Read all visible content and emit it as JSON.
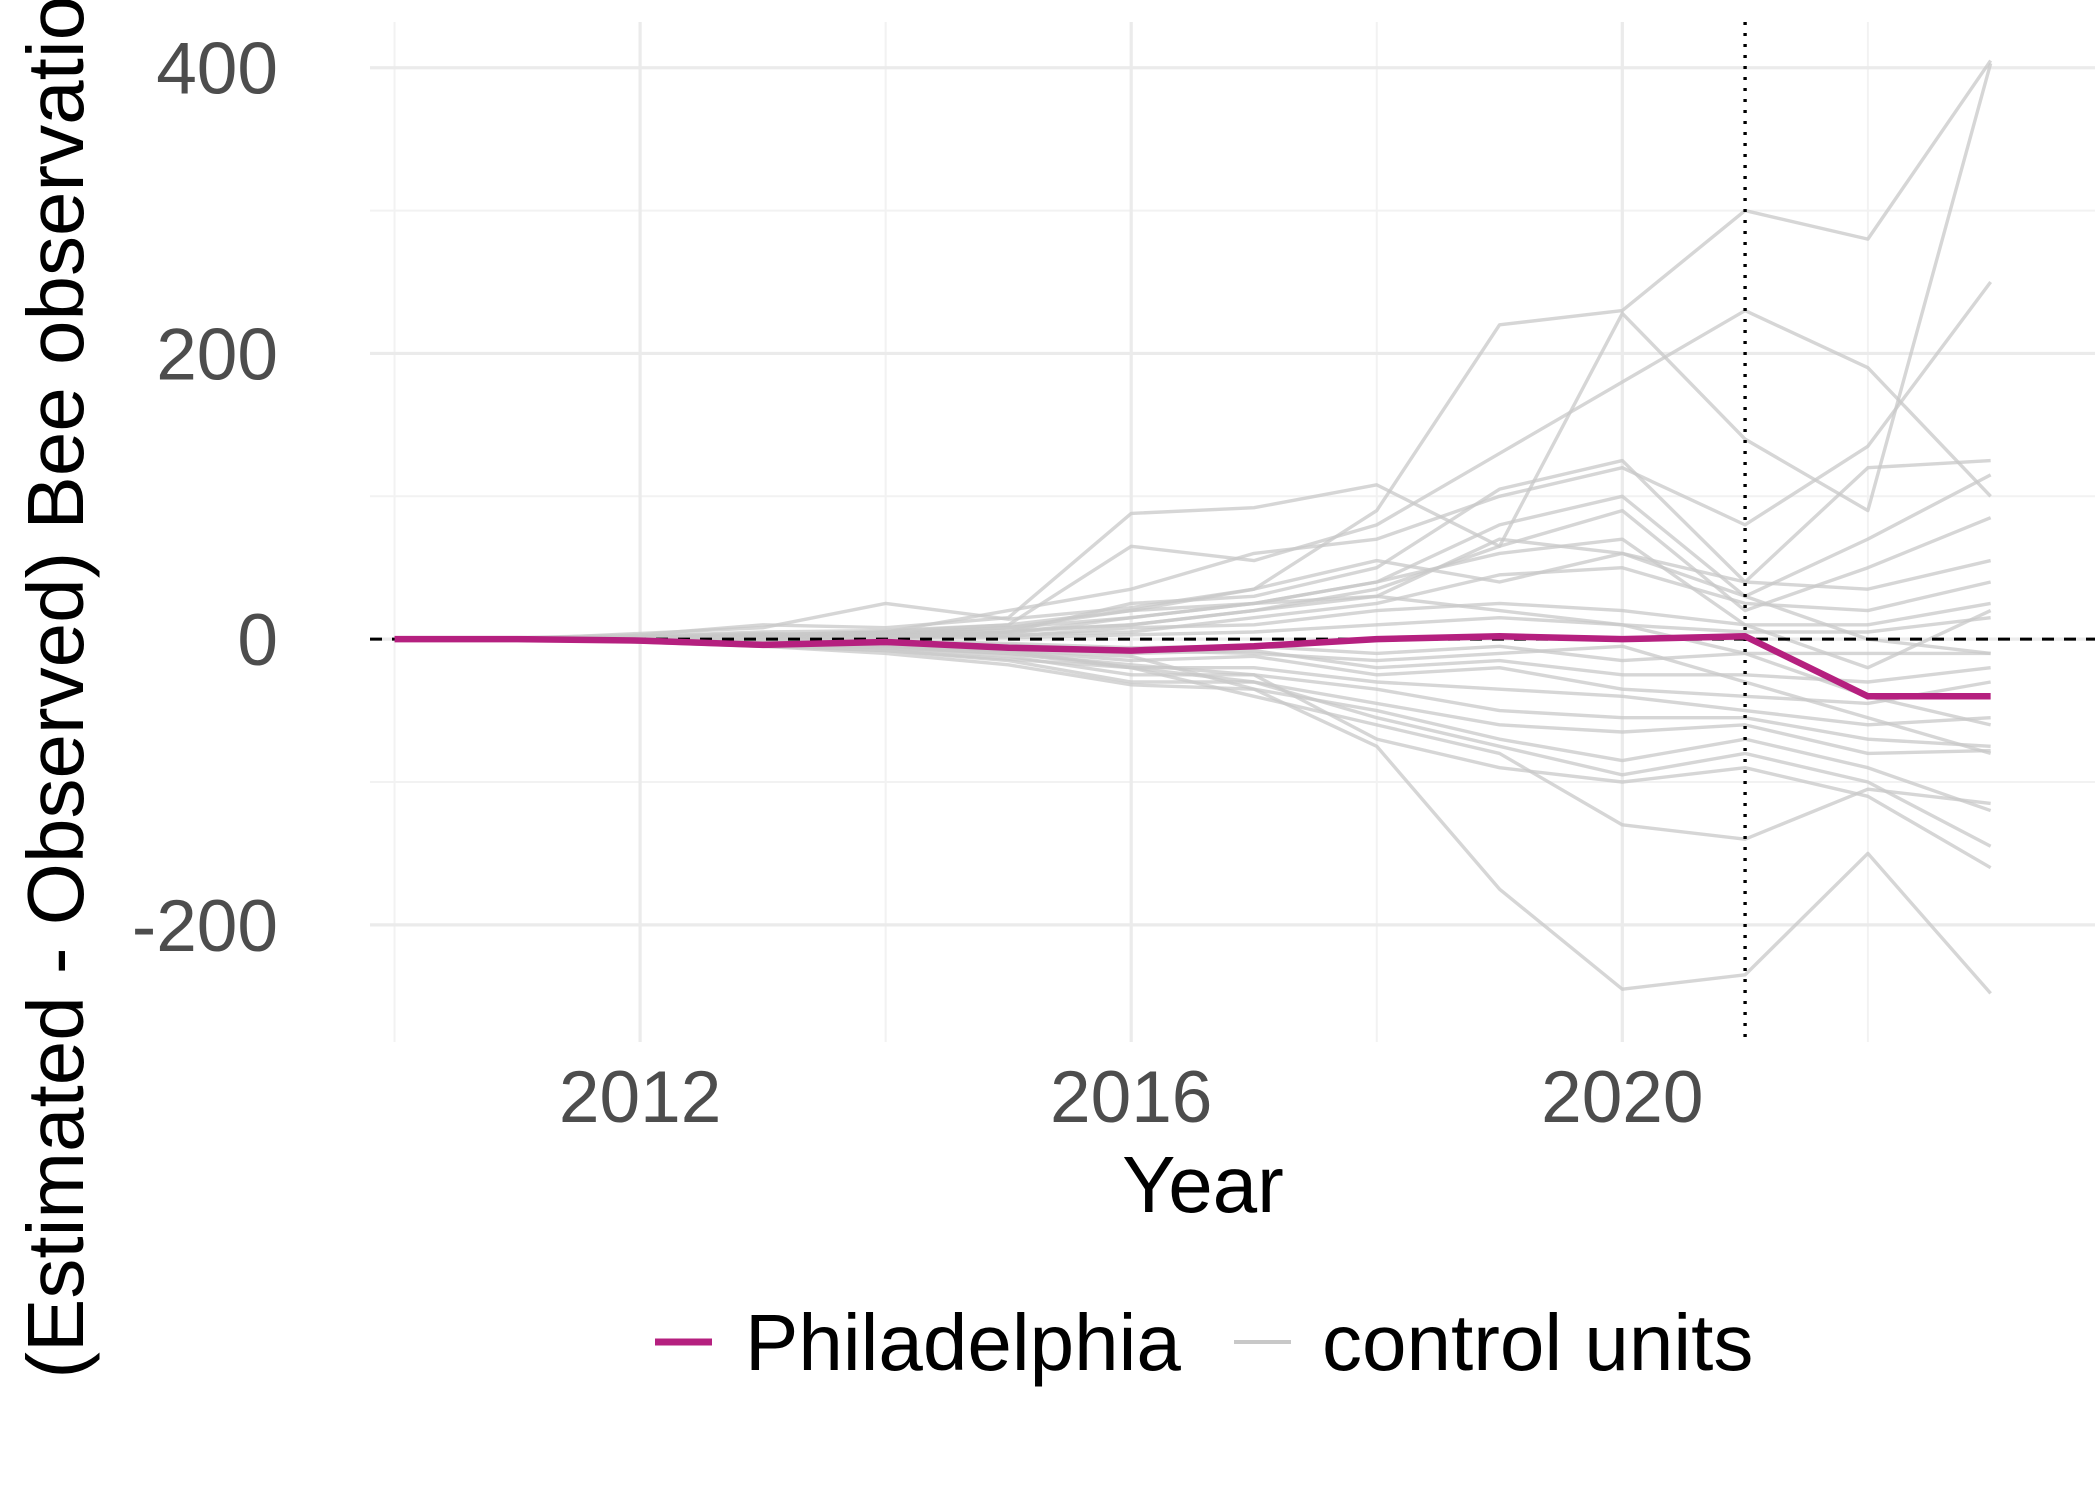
{
  "chart_data": {
    "type": "line",
    "xlabel": "Year",
    "ylabel": "(Estimated - Observed) Bee observations",
    "x": [
      2010,
      2011,
      2012,
      2013,
      2014,
      2015,
      2016,
      2017,
      2018,
      2019,
      2020,
      2021,
      2022,
      2023
    ],
    "xlim": [
      2009.8,
      2023.85
    ],
    "ylim": [
      -282,
      432
    ],
    "x_ticks": [
      "2012",
      "2016",
      "2020"
    ],
    "y_ticks": [
      "400",
      "200",
      "0",
      "-200"
    ],
    "grid": true,
    "reference_lines": {
      "horizontal_dashed_y": 0,
      "vertical_dotted_x": 2021
    },
    "legend": {
      "position": "bottom"
    },
    "colors": {
      "treated": "#b5207f",
      "control": "#c8c8c8",
      "reference": "#000000"
    },
    "series": [
      {
        "name": "Philadelphia",
        "role": "treated",
        "values": [
          0,
          0,
          -1,
          -4,
          -2,
          -6,
          -8,
          -5,
          0,
          2,
          0,
          2,
          -40,
          -40
        ]
      },
      {
        "name": "control units",
        "role": "control",
        "values": [
          0,
          1,
          3,
          10,
          8,
          15,
          88,
          92,
          108,
          65,
          228,
          140,
          90,
          403
        ]
      },
      {
        "role": "control",
        "values": [
          0,
          0,
          4,
          8,
          25,
          14,
          22,
          35,
          90,
          220,
          230,
          300,
          280,
          405
        ]
      },
      {
        "role": "control",
        "values": [
          0,
          1,
          2,
          5,
          6,
          10,
          65,
          55,
          80,
          130,
          180,
          230,
          190,
          100
        ]
      },
      {
        "role": "control",
        "values": [
          0,
          0,
          1,
          3,
          5,
          20,
          35,
          60,
          70,
          100,
          120,
          80,
          135,
          250
        ]
      },
      {
        "role": "control",
        "values": [
          0,
          0,
          2,
          4,
          2,
          5,
          25,
          30,
          50,
          105,
          125,
          40,
          120,
          125
        ]
      },
      {
        "role": "control",
        "values": [
          0,
          0,
          1,
          2,
          3,
          8,
          20,
          25,
          40,
          80,
          100,
          30,
          70,
          115
        ]
      },
      {
        "role": "control",
        "values": [
          0,
          0,
          1,
          1,
          4,
          6,
          10,
          20,
          35,
          65,
          90,
          20,
          50,
          85
        ]
      },
      {
        "role": "control",
        "values": [
          0,
          0,
          0,
          2,
          1,
          4,
          15,
          25,
          30,
          70,
          60,
          40,
          35,
          55
        ]
      },
      {
        "role": "control",
        "values": [
          0,
          0,
          1,
          1,
          3,
          3,
          5,
          15,
          25,
          45,
          50,
          25,
          20,
          40
        ]
      },
      {
        "role": "control",
        "values": [
          0,
          0,
          2,
          1,
          2,
          2,
          8,
          10,
          20,
          25,
          20,
          10,
          10,
          25
        ]
      },
      {
        "role": "control",
        "values": [
          0,
          0,
          0,
          1,
          1,
          1,
          3,
          5,
          10,
          15,
          10,
          5,
          5,
          15
        ]
      },
      {
        "role": "control",
        "values": [
          0,
          0,
          0,
          0,
          -1,
          -3,
          -6,
          -5,
          -10,
          -5,
          -15,
          -10,
          -10,
          -10
        ]
      },
      {
        "role": "control",
        "values": [
          0,
          0,
          -1,
          -2,
          -3,
          -5,
          -10,
          -8,
          -20,
          -15,
          -25,
          -25,
          -30,
          -20
        ]
      },
      {
        "role": "control",
        "values": [
          0,
          0,
          -1,
          -2,
          -4,
          -8,
          -15,
          -12,
          -25,
          -20,
          -35,
          -40,
          -45,
          -30
        ]
      },
      {
        "role": "control",
        "values": [
          0,
          0,
          -1,
          -3,
          -5,
          -10,
          -20,
          -20,
          -30,
          -35,
          -40,
          -50,
          -60,
          -55
        ]
      },
      {
        "role": "control",
        "values": [
          0,
          0,
          -2,
          -4,
          -6,
          -12,
          -25,
          -25,
          -35,
          -50,
          -55,
          -55,
          -70,
          -75
        ]
      },
      {
        "role": "control",
        "values": [
          0,
          0,
          -2,
          -5,
          -8,
          -15,
          -30,
          -30,
          -45,
          -60,
          -65,
          -60,
          -80,
          -78
        ]
      },
      {
        "role": "control",
        "values": [
          0,
          0,
          -2,
          -5,
          -10,
          -18,
          -32,
          -35,
          -50,
          -70,
          -85,
          -70,
          -90,
          -120
        ]
      },
      {
        "role": "control",
        "values": [
          0,
          0,
          -1,
          -4,
          -8,
          -14,
          -20,
          -30,
          -55,
          -75,
          -95,
          -80,
          -100,
          -145
        ]
      },
      {
        "role": "control",
        "values": [
          0,
          0,
          -1,
          -3,
          -6,
          -10,
          -18,
          -25,
          -70,
          -90,
          -100,
          -90,
          -110,
          -160
        ]
      },
      {
        "role": "control",
        "values": [
          0,
          0,
          -1,
          -2,
          -4,
          -8,
          -12,
          -35,
          -75,
          -175,
          -245,
          -235,
          -150,
          -248
        ]
      },
      {
        "role": "control",
        "values": [
          0,
          0,
          -1,
          -3,
          -5,
          -8,
          -20,
          -40,
          -60,
          -80,
          -130,
          -140,
          -105,
          -115
        ]
      },
      {
        "role": "control",
        "values": [
          0,
          0,
          1,
          2,
          4,
          8,
          15,
          25,
          40,
          60,
          70,
          10,
          -20,
          20
        ]
      },
      {
        "role": "control",
        "values": [
          0,
          0,
          1,
          3,
          5,
          10,
          20,
          35,
          55,
          40,
          60,
          30,
          0,
          -10
        ]
      },
      {
        "role": "control",
        "values": [
          0,
          0,
          0,
          1,
          2,
          5,
          10,
          20,
          30,
          20,
          10,
          -10,
          -40,
          -60
        ]
      },
      {
        "role": "control",
        "values": [
          0,
          0,
          0,
          -1,
          -2,
          -4,
          -8,
          -10,
          -15,
          -10,
          -5,
          -30,
          -55,
          -80
        ]
      }
    ]
  }
}
